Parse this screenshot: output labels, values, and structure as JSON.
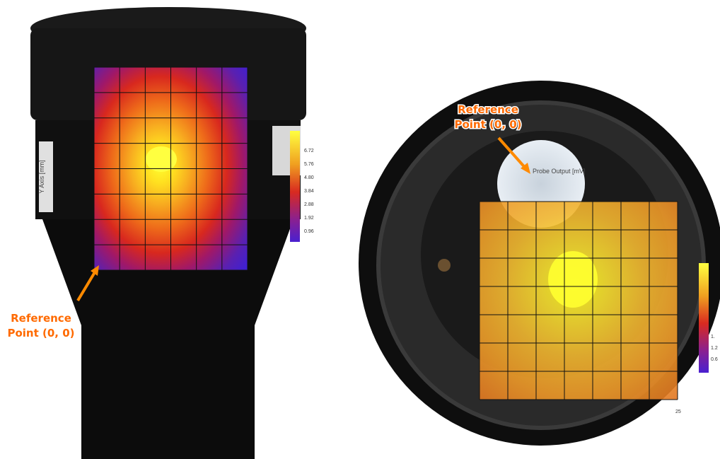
{
  "left_panel": {
    "annotation": [
      "Reference",
      "Point (0, 0)"
    ],
    "axis_label": "Y Axis [mm]",
    "colorbar_labels": [
      "6.72",
      "5.76",
      "4.80",
      "3.84",
      "2.88",
      "1.92",
      "0.96"
    ]
  },
  "right_panel": {
    "annotation": [
      "Reference",
      "Point (0, 0)"
    ],
    "legend_title": "Probe Output [mV]",
    "colorbar_labels": [
      "1.",
      "1.2",
      "0.6"
    ],
    "x_tick": "25"
  }
}
